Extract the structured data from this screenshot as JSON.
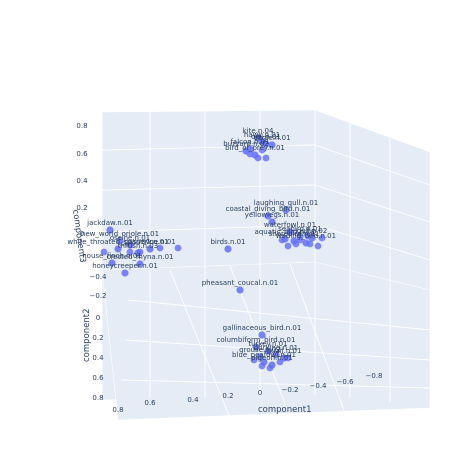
{
  "chart_data": {
    "type": "scatter",
    "scene": "3d",
    "colors": {
      "point": "#636efa",
      "pane": "#e5ecf6",
      "grid": "#ffffff",
      "text": "#2a3f5f"
    },
    "axes": {
      "x": {
        "label": "component1",
        "ticks": [
          "0.8",
          "0.6",
          "0.4",
          "0.2",
          "0",
          "−0.2",
          "−0.4",
          "−0.6",
          "−0.8"
        ]
      },
      "y": {
        "label": "component2",
        "ticks": [
          "−0.4",
          "−0.2",
          "0",
          "0.2",
          "0.4",
          "0.6",
          "0.8"
        ]
      },
      "z": {
        "label": "component3",
        "ticks": [
          "0.8",
          "0.6",
          "0.4",
          "0.2",
          "0"
        ]
      }
    },
    "series": [
      {
        "points": [
          {
            "label": "bird_of_prey.n.01"
          },
          {
            "label": "kite.n.04"
          },
          {
            "label": "hawk.n.01"
          },
          {
            "label": "owl.n.01"
          },
          {
            "label": "falcon.n.01"
          },
          {
            "label": "buzzard.n.02"
          },
          {
            "label": "eagle.n.01"
          },
          {
            "label": "laughing_gull.n.01"
          },
          {
            "label": "coastal_diving_bird.n.01"
          },
          {
            "label": "yellowlegs.n.01"
          },
          {
            "label": "waterfowl.n.01"
          },
          {
            "label": "seabird.n.01"
          },
          {
            "label": "wading_bird.n.01"
          },
          {
            "label": "shorebird.n.01"
          },
          {
            "label": "gull.n.02"
          },
          {
            "label": "aquatic_bird.n.01"
          },
          {
            "label": "jackdaw.n.01"
          },
          {
            "label": "new_world_oriole.n.01"
          },
          {
            "label": "oscine.n.01"
          },
          {
            "label": "passerine.n.01"
          },
          {
            "label": "white_throated_sparrow.n.01"
          },
          {
            "label": "house_finch.n.01"
          },
          {
            "label": "crested_myna.n.01"
          },
          {
            "label": "honeycreeper.n.01"
          },
          {
            "label": "thrush.n.03"
          },
          {
            "label": "birds.n.01"
          },
          {
            "label": "pheasant_coucal.n.01"
          },
          {
            "label": "gallinaceous_bird.n.01"
          },
          {
            "label": "columbiform_bird.n.01"
          },
          {
            "label": "blue_peafowl.n.01"
          },
          {
            "label": "dorking.n.01"
          },
          {
            "label": "turkey.n.01"
          },
          {
            "label": "grouse.n.02"
          },
          {
            "label": "quail.n.01"
          },
          {
            "label": "pigeon.n.01"
          }
        ]
      }
    ]
  }
}
